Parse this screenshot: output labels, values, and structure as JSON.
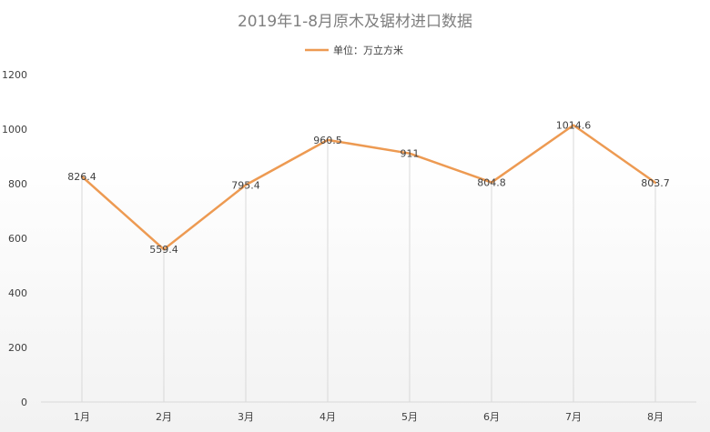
{
  "chart_data": {
    "type": "line",
    "title": "2019年1-8月原木及锯材进口数据",
    "categories": [
      "1月",
      "2月",
      "3月",
      "4月",
      "5月",
      "6月",
      "7月",
      "8月"
    ],
    "series": [
      {
        "name": "单位：万立方米",
        "values": [
          826.4,
          559.4,
          795.4,
          960.5,
          911,
          804.8,
          1014.6,
          803.7
        ],
        "labels": [
          "826.4",
          "559.4",
          "795.4",
          "960.5",
          "911",
          "804.8",
          "1014.6",
          "803.7"
        ],
        "color": "#ED9A52"
      }
    ],
    "yticks": [
      "0",
      "200",
      "400",
      "600",
      "800",
      "1000",
      "1200"
    ],
    "ylim": [
      0,
      1200
    ],
    "xlabel": "",
    "ylabel": "",
    "grid": "vertical drop lines",
    "legend_position": "top"
  }
}
